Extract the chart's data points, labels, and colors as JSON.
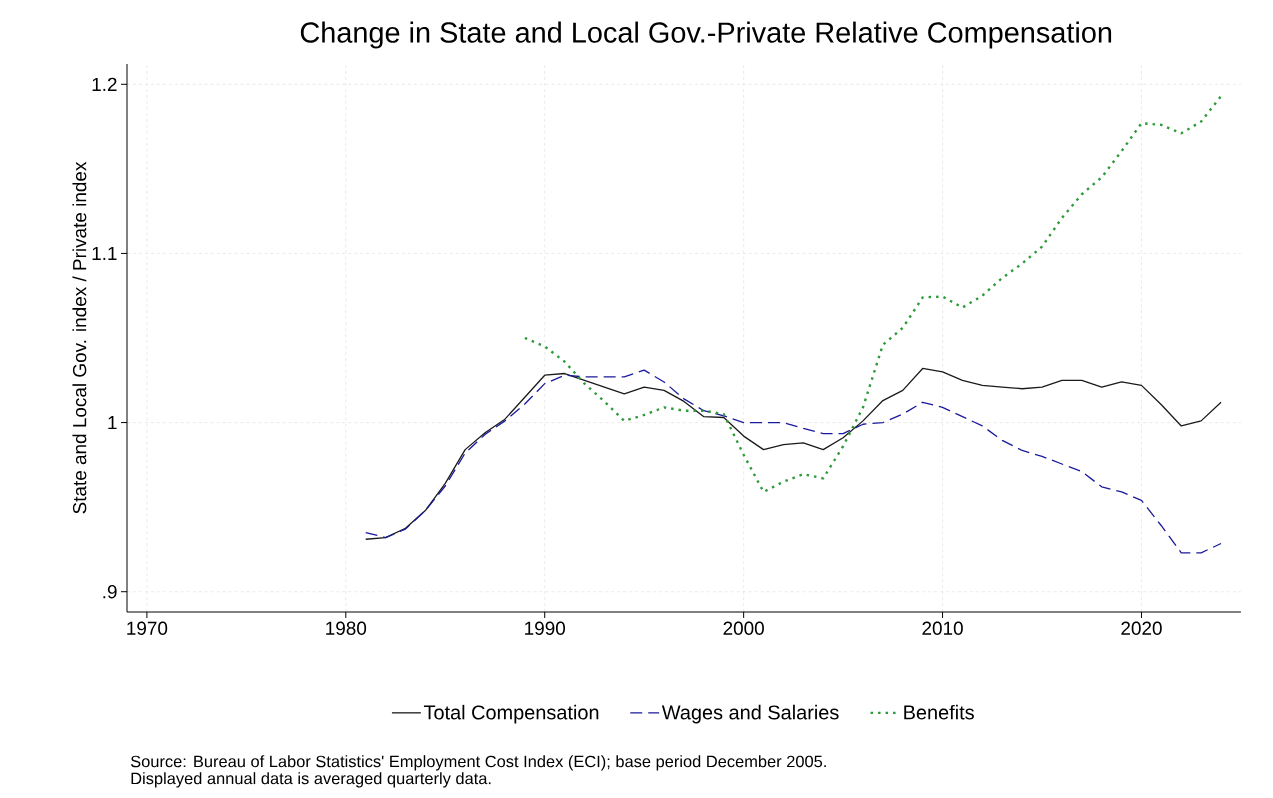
{
  "chart_data": {
    "type": "line",
    "title": "Change in State and Local Gov.-Private Relative Compensation",
    "ylabel": "State and Local Gov. index / Private index",
    "x": [
      1981,
      1982,
      1983,
      1984,
      1985,
      1986,
      1987,
      1988,
      1989,
      1990,
      1991,
      1992,
      1993,
      1994,
      1995,
      1996,
      1997,
      1998,
      1999,
      2000,
      2001,
      2002,
      2003,
      2004,
      2005,
      2006,
      2007,
      2008,
      2009,
      2010,
      2011,
      2012,
      2013,
      2014,
      2015,
      2016,
      2017,
      2018,
      2019,
      2020,
      2021,
      2022,
      2023,
      2024
    ],
    "series": [
      {
        "name": "Total Compensation",
        "color": "#1a1a1a",
        "line_style": "solid",
        "values": [
          0.931,
          0.932,
          0.9375,
          0.948,
          0.964,
          0.984,
          0.994,
          1.002,
          1.015,
          1.028,
          1.029,
          1.025,
          1.021,
          1.017,
          1.021,
          1.019,
          1.0125,
          1.0035,
          1.003,
          0.992,
          0.984,
          0.987,
          0.988,
          0.984,
          0.991,
          1.001,
          1.013,
          1.019,
          1.032,
          1.03,
          1.025,
          1.022,
          1.021,
          1.02,
          1.021,
          1.025,
          1.025,
          1.021,
          1.024,
          1.022,
          1.0105,
          0.998,
          1.001,
          1.012
        ]
      },
      {
        "name": "Wages and Salaries",
        "color": "#1a1a9c",
        "line_style": "dashed",
        "values": [
          0.935,
          0.932,
          0.937,
          0.948,
          0.9625,
          0.982,
          0.993,
          1.001,
          1.011,
          1.023,
          1.028,
          1.027,
          1.027,
          1.027,
          1.031,
          1.024,
          1.014,
          1.007,
          1.004,
          1.0,
          1.0,
          1.0,
          0.9965,
          0.9935,
          0.9935,
          0.999,
          1.0,
          1.005,
          1.012,
          1.009,
          1.0035,
          0.998,
          0.9895,
          0.9835,
          0.98,
          0.9755,
          0.971,
          0.962,
          0.959,
          0.954,
          0.939,
          0.923,
          0.923,
          0.9285
        ]
      },
      {
        "name": "Benefits",
        "color": "#2e9a3a",
        "line_style": "dotted",
        "values": [
          null,
          null,
          null,
          null,
          null,
          null,
          null,
          null,
          1.05,
          1.045,
          1.036,
          1.023,
          1.0125,
          1.001,
          1.0045,
          1.009,
          1.007,
          1.007,
          1.005,
          0.981,
          0.959,
          0.965,
          0.9695,
          0.967,
          0.986,
          1.009,
          1.046,
          1.056,
          1.074,
          1.0745,
          1.068,
          1.075,
          1.0855,
          1.094,
          1.104,
          1.121,
          1.135,
          1.145,
          1.1605,
          1.177,
          1.176,
          1.171,
          1.178,
          1.193
        ]
      }
    ],
    "xlim": [
      1969,
      2025
    ],
    "ylim": [
      0.888,
      1.212
    ],
    "xticks": [
      1970,
      1980,
      1990,
      2000,
      2010,
      2020
    ],
    "yticks": [
      {
        "value": 0.9,
        "label": ".9"
      },
      1,
      1.1,
      1.2
    ],
    "grid": true,
    "legend": "bottom",
    "annotations": [
      "Source: Bureau of Labor Statistics' Employment Cost Index (ECI); base period December 2005.",
      "Displayed annual data is averaged quarterly data."
    ]
  }
}
